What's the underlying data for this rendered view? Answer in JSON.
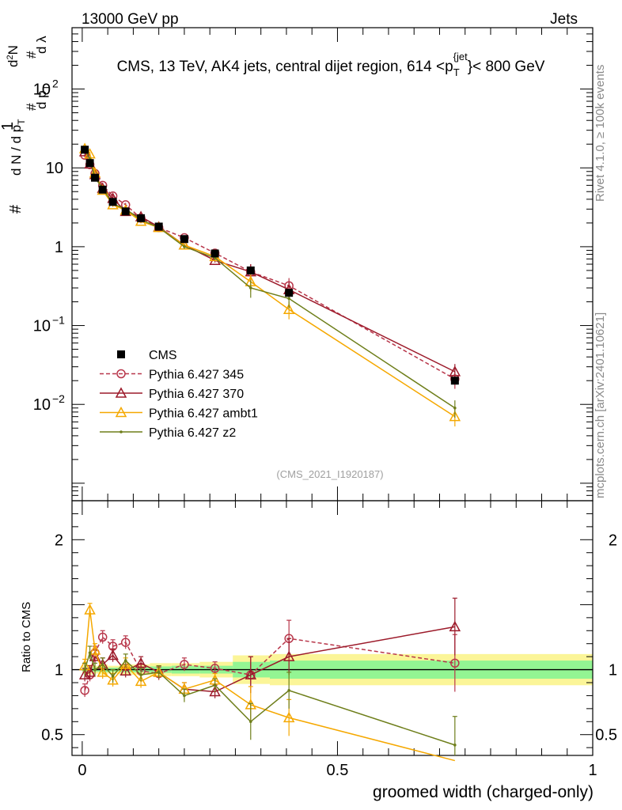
{
  "header": {
    "left": "13000 GeV pp",
    "right": "Jets",
    "title_main": "CMS, 13 TeV, AK4 jets, central dijet region, 614 <p",
    "title_sub": "T",
    "title_sup": "{jet",
    "title_tail": "}< 800 GeV"
  },
  "side": {
    "rivet": "Rivet 4.1.0, ≥ 100k events",
    "mcplots": "mcplots.cern.ch [arXiv:2401.10621]"
  },
  "analysis_tag": "(CMS_2021_I1920187)",
  "chart_data": [
    {
      "type": "line",
      "title": "CMS, 13 TeV, AK4 jets, central dijet region, 614 <p_T^{jet}< 800 GeV",
      "yscale": "log",
      "ylabel": "1/dN/dp_T dN/dp_T dλ",
      "ylabel_parts": {
        "hash1": "#",
        "one": "1",
        "denom_d": "d N / d p",
        "denom_T": "T",
        "hash2": "#",
        "num_d": "d",
        "num_2": "2",
        "num_N": "N",
        "hash3": "#",
        "dp": "d p",
        "dp_T": "T",
        "dlambda": "d λ"
      },
      "xlim": [
        -0.02,
        1.0
      ],
      "ylim": [
        0.0006,
        600
      ],
      "y_tick_labels": [
        {
          "v": 0.01,
          "base": "10",
          "exp": "−2"
        },
        {
          "v": 0.1,
          "base": "10",
          "exp": "−1"
        },
        {
          "v": 1,
          "base": "1",
          "exp": ""
        },
        {
          "v": 10,
          "base": "10",
          "exp": ""
        },
        {
          "v": 100,
          "base": "10",
          "exp": "2"
        }
      ],
      "x": [
        0.005,
        0.015,
        0.025,
        0.04,
        0.06,
        0.085,
        0.115,
        0.15,
        0.2,
        0.26,
        0.33,
        0.405,
        0.73
      ],
      "series": [
        {
          "name": "CMS",
          "color": "#000000",
          "marker": "square",
          "values": [
            17,
            11.5,
            7.5,
            5.3,
            3.7,
            2.8,
            2.3,
            1.8,
            1.25,
            0.82,
            0.5,
            0.26,
            0.02
          ]
        },
        {
          "name": "Pythia 6.427 345",
          "color": "#b8364a",
          "marker": "circle-open",
          "dash": true,
          "values": [
            14.5,
            11.0,
            8.5,
            6.0,
            4.4,
            3.4,
            2.3,
            1.75,
            1.3,
            0.83,
            0.48,
            0.32,
            0.021
          ]
        },
        {
          "name": "Pythia 6.427 370",
          "color": "#9c1a2a",
          "marker": "triangle-open",
          "values": [
            16.0,
            11.2,
            8.2,
            5.5,
            4.1,
            2.8,
            2.4,
            1.78,
            1.05,
            0.67,
            0.48,
            0.285,
            0.026
          ]
        },
        {
          "name": "Pythia 6.427 ambt1",
          "color": "#f5a800",
          "marker": "triangle-open",
          "values": [
            17.5,
            15.0,
            8.6,
            5.2,
            3.4,
            2.9,
            2.1,
            1.75,
            1.05,
            0.75,
            0.36,
            0.16,
            0.007
          ]
        },
        {
          "name": "Pythia 6.427 z2",
          "color": "#6e7e1a",
          "marker": "dot",
          "values": [
            17.0,
            13.0,
            7.5,
            5.5,
            3.5,
            3.0,
            2.2,
            1.75,
            1.0,
            0.72,
            0.3,
            0.22,
            0.009
          ]
        }
      ],
      "legend": "middle-left"
    },
    {
      "type": "line",
      "ylabel": "Ratio to CMS",
      "xlabel": "groomed width (charged-only)",
      "xlim": [
        -0.02,
        1.0
      ],
      "ylim": [
        0.34,
        2.3
      ],
      "y_ticks": [
        0.5,
        1,
        2
      ],
      "y_tick_labels": [
        "0.5",
        "1",
        "2"
      ],
      "x_ticks": [
        0,
        0.5,
        1
      ],
      "x_tick_labels": [
        "0",
        "0.5",
        "1"
      ],
      "x": [
        0.005,
        0.015,
        0.025,
        0.04,
        0.06,
        0.085,
        0.115,
        0.15,
        0.2,
        0.26,
        0.33,
        0.405,
        0.73
      ],
      "series": [
        {
          "name": "Pythia 6.427 345",
          "color": "#b8364a",
          "values": [
            0.84,
            0.96,
            1.13,
            1.25,
            1.18,
            1.21,
            0.99,
            0.97,
            1.04,
            1.01,
            0.96,
            1.24,
            1.05
          ]
        },
        {
          "name": "Pythia 6.427 370",
          "color": "#9c1a2a",
          "values": [
            0.96,
            0.98,
            1.1,
            1.04,
            1.11,
            0.99,
            1.05,
            0.98,
            0.85,
            0.83,
            0.96,
            1.1,
            1.33
          ]
        },
        {
          "name": "Pythia 6.427 ambt1",
          "color": "#f5a800",
          "values": [
            1.03,
            1.46,
            1.15,
            0.98,
            0.92,
            1.04,
            0.91,
            0.98,
            0.85,
            0.92,
            0.73,
            0.63,
            0.3
          ]
        },
        {
          "name": "Pythia 6.427 z2",
          "color": "#6e7e1a",
          "values": [
            1.0,
            1.13,
            1.0,
            1.04,
            0.95,
            1.07,
            0.96,
            0.98,
            0.8,
            0.88,
            0.6,
            0.84,
            0.42
          ]
        }
      ]
    }
  ]
}
